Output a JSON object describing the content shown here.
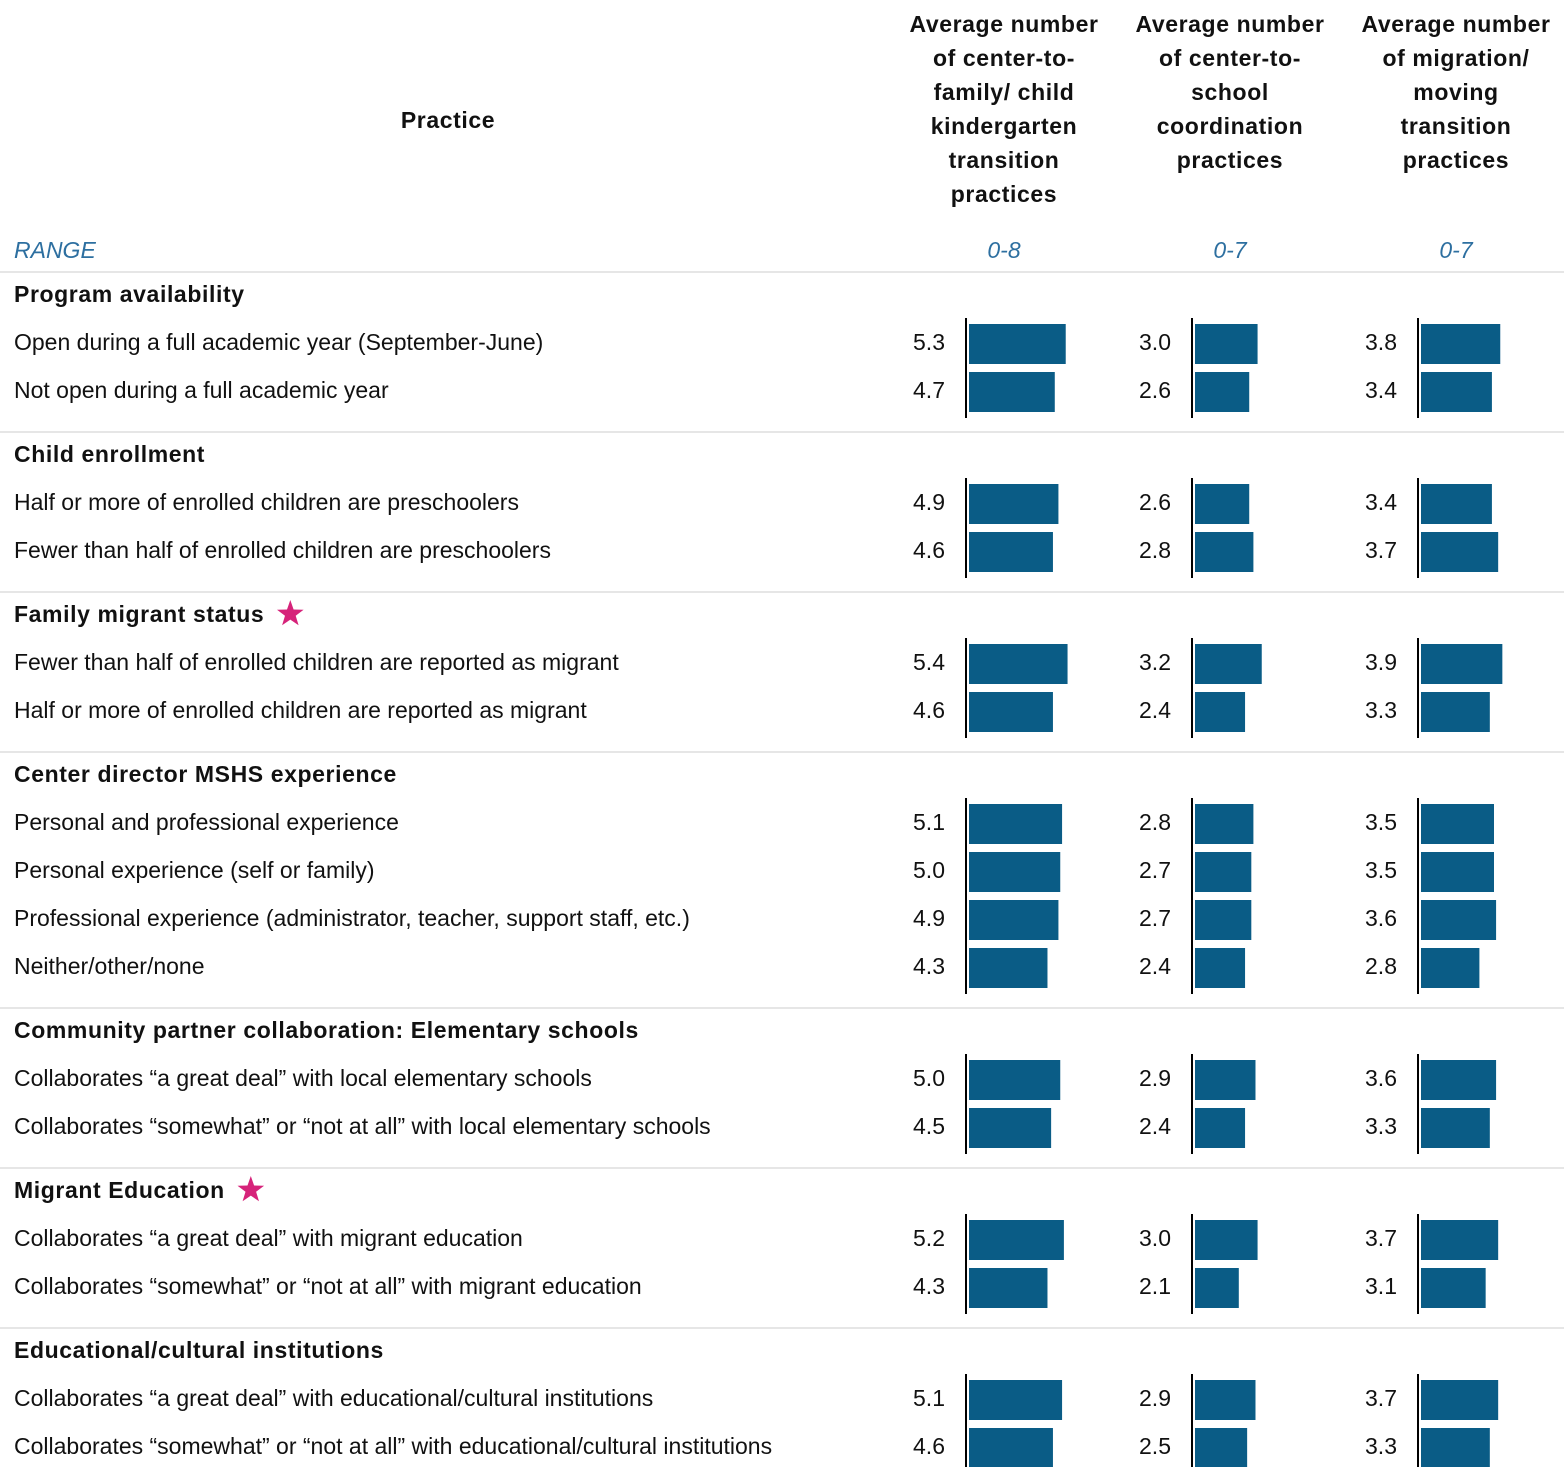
{
  "header": {
    "practice": "Practice",
    "columns": [
      {
        "title": [
          "Average number",
          "of center-to-",
          "family/ child",
          "kindergarten",
          "transition",
          "practices"
        ],
        "range": "0-8",
        "xlim": [
          0,
          8
        ]
      },
      {
        "title": [
          "Average number",
          "of center-to-",
          "school",
          "coordination",
          "practices"
        ],
        "range": "0-7",
        "xlim": [
          0,
          7
        ]
      },
      {
        "title": [
          "Average number",
          "of migration/",
          "moving",
          "transition",
          "practices"
        ],
        "range": "0-7",
        "xlim": [
          0,
          7
        ]
      }
    ]
  },
  "range_label": "RANGE",
  "bar_color": "#0a5c86",
  "star_color": "#d6237a",
  "groups": [
    {
      "title": "Program availability",
      "star": false,
      "rows": [
        {
          "label": "Open during a full academic year (September-June)",
          "values": [
            5.3,
            3.0,
            3.8
          ],
          "value_labels": [
            "5.3",
            "3.0",
            "3.8"
          ]
        },
        {
          "label": "Not open during a full academic year",
          "values": [
            4.7,
            2.6,
            3.4
          ],
          "value_labels": [
            "4.7",
            "2.6",
            "3.4"
          ]
        }
      ]
    },
    {
      "title": "Child enrollment",
      "star": false,
      "rows": [
        {
          "label": "Half or more of enrolled children are preschoolers",
          "values": [
            4.9,
            2.6,
            3.4
          ],
          "value_labels": [
            "4.9",
            "2.6",
            "3.4"
          ]
        },
        {
          "label": "Fewer than half of enrolled children are preschoolers",
          "values": [
            4.6,
            2.8,
            3.7
          ],
          "value_labels": [
            "4.6",
            "2.8",
            "3.7"
          ]
        }
      ]
    },
    {
      "title": "Family migrant status",
      "star": true,
      "rows": [
        {
          "label": "Fewer than half of enrolled children are reported as migrant",
          "values": [
            5.4,
            3.2,
            3.9
          ],
          "value_labels": [
            "5.4",
            "3.2",
            "3.9"
          ]
        },
        {
          "label": "Half or more of enrolled children are reported as migrant",
          "values": [
            4.6,
            2.4,
            3.3
          ],
          "value_labels": [
            "4.6",
            "2.4",
            "3.3"
          ]
        }
      ]
    },
    {
      "title": "Center director MSHS experience",
      "star": false,
      "rows": [
        {
          "label": "Personal and professional experience",
          "values": [
            5.1,
            2.8,
            3.5
          ],
          "value_labels": [
            "5.1",
            "2.8",
            "3.5"
          ]
        },
        {
          "label": "Personal experience (self or family)",
          "values": [
            5.0,
            2.7,
            3.5
          ],
          "value_labels": [
            "5.0",
            "2.7",
            "3.5"
          ]
        },
        {
          "label": "Professional experience (administrator, teacher, support staff, etc.)",
          "values": [
            4.9,
            2.7,
            3.6
          ],
          "value_labels": [
            "4.9",
            "2.7",
            "3.6"
          ]
        },
        {
          "label": "Neither/other/none",
          "values": [
            4.3,
            2.4,
            2.8
          ],
          "value_labels": [
            "4.3",
            "2.4",
            "2.8"
          ]
        }
      ]
    },
    {
      "title": "Community partner collaboration: Elementary schools",
      "star": false,
      "rows": [
        {
          "label": "Collaborates “a great deal” with local elementary schools",
          "values": [
            5.0,
            2.9,
            3.6
          ],
          "value_labels": [
            "5.0",
            "2.9",
            "3.6"
          ]
        },
        {
          "label": "Collaborates “somewhat” or “not at all” with local elementary schools",
          "values": [
            4.5,
            2.4,
            3.3
          ],
          "value_labels": [
            "4.5",
            "2.4",
            "3.3"
          ]
        }
      ]
    },
    {
      "title": "Migrant Education",
      "star": true,
      "rows": [
        {
          "label": "Collaborates “a great deal” with migrant education",
          "values": [
            5.2,
            3.0,
            3.7
          ],
          "value_labels": [
            "5.2",
            "3.0",
            "3.7"
          ]
        },
        {
          "label": "Collaborates “somewhat” or “not at all” with migrant education",
          "values": [
            4.3,
            2.1,
            3.1
          ],
          "value_labels": [
            "4.3",
            "2.1",
            "3.1"
          ]
        }
      ]
    },
    {
      "title": "Educational/cultural institutions",
      "star": false,
      "rows": [
        {
          "label": "Collaborates “a great deal” with educational/cultural institutions",
          "values": [
            5.1,
            2.9,
            3.7
          ],
          "value_labels": [
            "5.1",
            "2.9",
            "3.7"
          ]
        },
        {
          "label": "Collaborates “somewhat” or “not at all” with educational/cultural institutions",
          "values": [
            4.6,
            2.5,
            3.3
          ],
          "value_labels": [
            "4.6",
            "2.5",
            "3.3"
          ]
        }
      ]
    }
  ]
}
